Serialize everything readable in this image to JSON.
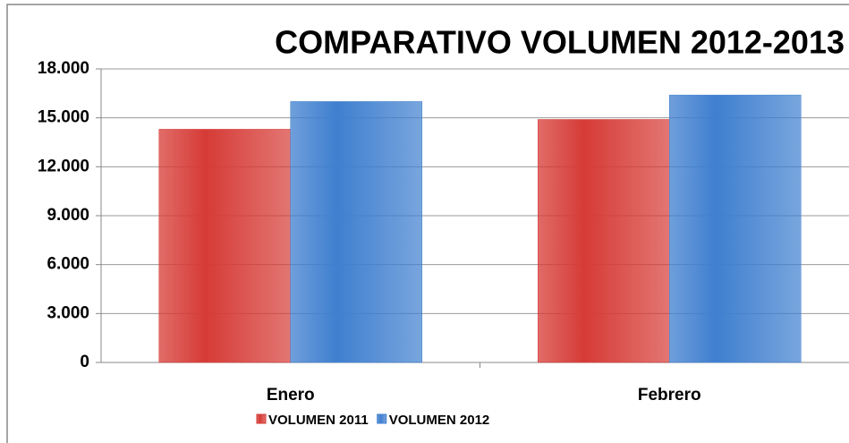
{
  "chart_data": {
    "type": "bar",
    "title": "COMPARATIVO VOLUMEN 2012-2013",
    "categories": [
      "Enero",
      "Febrero"
    ],
    "series": [
      {
        "name": "VOLUMEN 2011",
        "color": "#d63b36",
        "values": [
          14300,
          14900
        ]
      },
      {
        "name": "VOLUMEN 2012",
        "color": "#3f7fcf",
        "values": [
          16000,
          16400
        ]
      }
    ],
    "ylim": [
      0,
      18000
    ],
    "yticks": [
      0,
      {
        "value": 3000,
        "label": "3.000"
      },
      {
        "value": 6000,
        "label": "6.000"
      },
      {
        "value": 9000,
        "label": "9.000"
      },
      {
        "value": 12000,
        "label": "12.000"
      },
      {
        "value": 15000,
        "label": "15.000"
      },
      {
        "value": 18000,
        "label": "18.000"
      }
    ],
    "grid": true,
    "legend": "bottom"
  }
}
